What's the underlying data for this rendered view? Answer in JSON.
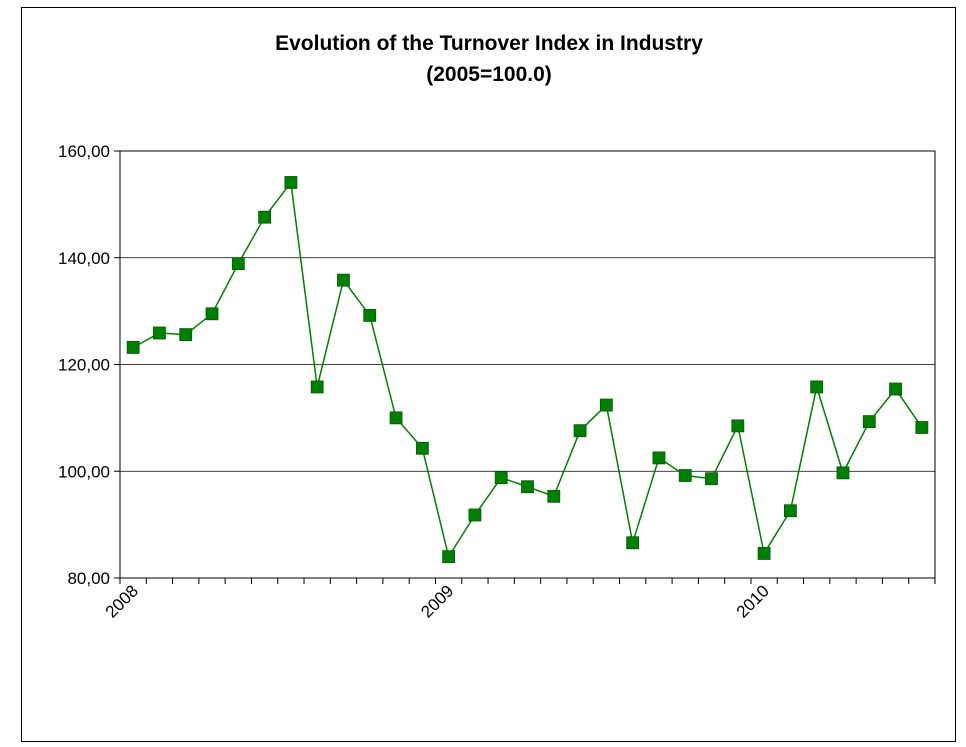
{
  "chart_data": {
    "type": "line",
    "title": "Evolution of the Turnover Index in Industry",
    "subtitle": "(2005=100.0)",
    "ylim": [
      80,
      160
    ],
    "y_ticks": [
      "80,00",
      "100,00",
      "120,00",
      "140,00",
      "160,00"
    ],
    "y_tick_values": [
      80,
      100,
      120,
      140,
      160
    ],
    "x_tick_labels": [
      "2008",
      "2009",
      "2010"
    ],
    "x_tick_label_index": [
      0,
      12,
      24
    ],
    "grid": "horizontal",
    "legend": "none",
    "series": [
      {
        "color": "#008000",
        "values": [
          123.2,
          125.9,
          125.6,
          129.5,
          138.9,
          147.6,
          154.1,
          115.8,
          135.8,
          129.2,
          110.0,
          104.3,
          84.0,
          91.8,
          98.8,
          97.1,
          95.3,
          107.6,
          112.4,
          86.6,
          102.5,
          99.2,
          98.6,
          108.5,
          84.6,
          92.6,
          115.8,
          99.7,
          109.3,
          115.4,
          108.2
        ]
      }
    ]
  }
}
